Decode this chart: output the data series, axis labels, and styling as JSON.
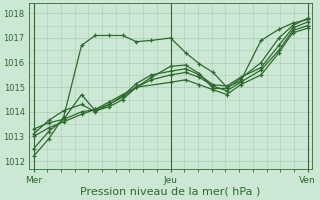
{
  "bg_color": "#cce8d4",
  "grid_color": "#aacfb5",
  "line_color": "#2d6a2d",
  "xlabel": "Pression niveau de la mer( hPa )",
  "xlabel_fontsize": 8,
  "xtick_labels": [
    "Mer",
    "Jeu",
    "Ven"
  ],
  "ytick_min": 1012,
  "ytick_max": 1018,
  "ylim": [
    1011.7,
    1018.4
  ],
  "xlim": [
    -0.015,
    1.015
  ],
  "series": [
    {
      "x": [
        0.0,
        0.055,
        0.11,
        0.175,
        0.225,
        0.275,
        0.325,
        0.375,
        0.43,
        0.5,
        0.555,
        0.605,
        0.655,
        0.705,
        0.755,
        0.83,
        0.895,
        0.945,
        1.0
      ],
      "y": [
        1012.2,
        1012.9,
        1013.8,
        1016.7,
        1017.1,
        1017.1,
        1017.1,
        1016.85,
        1016.9,
        1017.0,
        1016.4,
        1015.95,
        1015.6,
        1015.0,
        1015.25,
        1016.9,
        1017.35,
        1017.6,
        1017.75
      ]
    },
    {
      "x": [
        0.0,
        0.055,
        0.11,
        0.175,
        0.225,
        0.275,
        0.325,
        0.375,
        0.43,
        0.5,
        0.555,
        0.605,
        0.655,
        0.705,
        0.755,
        0.83,
        0.895,
        0.945,
        1.0
      ],
      "y": [
        1012.5,
        1013.2,
        1013.7,
        1014.7,
        1014.05,
        1014.2,
        1014.5,
        1015.0,
        1015.4,
        1015.85,
        1015.9,
        1015.55,
        1014.95,
        1014.95,
        1015.35,
        1016.0,
        1017.0,
        1017.5,
        1017.8
      ]
    },
    {
      "x": [
        0.0,
        0.055,
        0.11,
        0.175,
        0.225,
        0.275,
        0.325,
        0.375,
        0.43,
        0.5,
        0.555,
        0.605,
        0.655,
        0.705,
        0.755,
        0.83,
        0.895,
        0.945,
        1.0
      ],
      "y": [
        1013.1,
        1013.65,
        1014.05,
        1014.3,
        1014.0,
        1014.3,
        1014.65,
        1015.15,
        1015.5,
        1015.65,
        1015.75,
        1015.5,
        1015.1,
        1015.05,
        1015.4,
        1015.8,
        1016.7,
        1017.4,
        1017.65
      ]
    },
    {
      "x": [
        0.0,
        0.055,
        0.11,
        0.175,
        0.225,
        0.275,
        0.325,
        0.375,
        0.43,
        0.5,
        0.555,
        0.605,
        0.655,
        0.705,
        0.755,
        0.83,
        0.895,
        0.945,
        1.0
      ],
      "y": [
        1013.3,
        1013.55,
        1013.7,
        1014.0,
        1014.1,
        1014.3,
        1014.6,
        1015.0,
        1015.3,
        1015.5,
        1015.6,
        1015.4,
        1015.05,
        1014.85,
        1015.2,
        1015.7,
        1016.5,
        1017.3,
        1017.5
      ]
    },
    {
      "x": [
        0.0,
        0.055,
        0.11,
        0.175,
        0.225,
        0.275,
        0.325,
        0.375,
        0.5,
        0.555,
        0.605,
        0.655,
        0.705,
        0.755,
        0.83,
        0.895,
        0.945,
        1.0
      ],
      "y": [
        1013.0,
        1013.35,
        1013.6,
        1013.9,
        1014.1,
        1014.4,
        1014.7,
        1015.0,
        1015.2,
        1015.3,
        1015.1,
        1014.9,
        1014.7,
        1015.1,
        1015.5,
        1016.4,
        1017.2,
        1017.4
      ]
    }
  ],
  "vline_x": [
    0.0,
    0.5,
    1.0
  ],
  "marker": "+",
  "markersize": 3.5,
  "linewidth": 0.9
}
